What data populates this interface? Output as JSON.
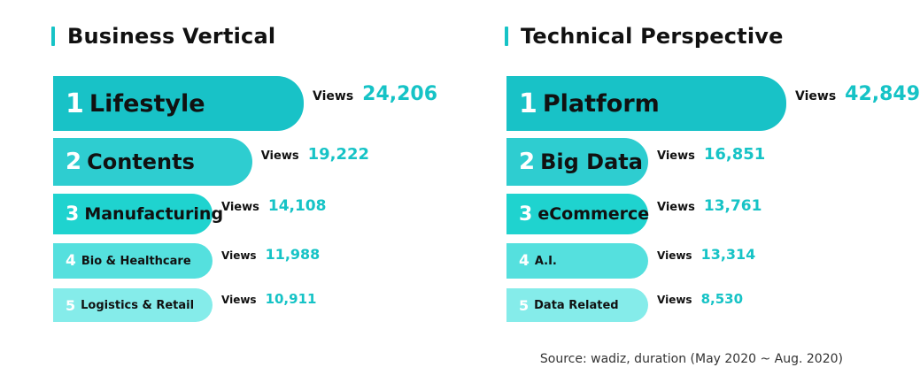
{
  "colors": {
    "accent": "#16c3c6",
    "ranks": [
      "#18c2c7",
      "#2ecdd0",
      "#1fd3cf",
      "#55e0de",
      "#85ecea"
    ]
  },
  "source": "Source: wadiz, duration (May 2020 ~ Aug. 2020)",
  "chart_data": [
    {
      "type": "bar",
      "title": "Business Vertical",
      "views_label": "Views",
      "categories": [
        "Lifestyle",
        "Contents",
        "Manufacturing",
        "Bio & Healthcare",
        "Logistics & Retail"
      ],
      "ranks": [
        "1",
        "2",
        "3",
        "4",
        "5"
      ],
      "values": [
        24206,
        19222,
        14108,
        11988,
        10911
      ],
      "value_labels": [
        "24,206",
        "19,222",
        "14,108",
        "11,988",
        "10,911"
      ]
    },
    {
      "type": "bar",
      "title": "Technical Perspective",
      "views_label": "Views",
      "categories": [
        "Platform",
        "Big Data",
        "eCommerce",
        "A.I.",
        "Data Related"
      ],
      "ranks": [
        "1",
        "2",
        "3",
        "4",
        "5"
      ],
      "values": [
        42849,
        16851,
        13761,
        13314,
        8530
      ],
      "value_labels": [
        "42,849",
        "16,851",
        "13,761",
        "13,314",
        "8,530"
      ]
    }
  ]
}
